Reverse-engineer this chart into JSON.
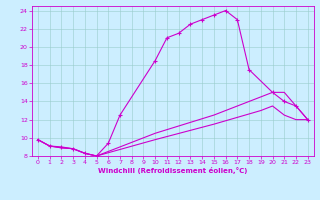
{
  "xlabel": "Windchill (Refroidissement éolien,°C)",
  "background_color": "#cceeff",
  "line_color": "#cc00cc",
  "xlim": [
    -0.5,
    23.5
  ],
  "ylim": [
    8,
    24.5
  ],
  "yticks": [
    8,
    10,
    12,
    14,
    16,
    18,
    20,
    22,
    24
  ],
  "xticks": [
    0,
    1,
    2,
    3,
    4,
    5,
    6,
    7,
    8,
    9,
    10,
    11,
    12,
    13,
    14,
    15,
    16,
    17,
    18,
    19,
    20,
    21,
    22,
    23
  ],
  "series": [
    {
      "x": [
        0,
        1,
        2,
        3,
        4,
        5,
        6,
        7,
        10,
        11,
        12,
        13,
        14,
        15,
        16,
        17,
        18,
        20,
        21,
        22,
        23
      ],
      "y": [
        9.8,
        9.1,
        9.0,
        8.8,
        8.3,
        8.0,
        9.4,
        12.5,
        18.5,
        21.0,
        21.5,
        22.5,
        23.0,
        23.5,
        24.0,
        23.0,
        17.5,
        15.0,
        14.0,
        13.5,
        12.0
      ],
      "marker": true
    },
    {
      "x": [
        0,
        1,
        2,
        3,
        4,
        5,
        10,
        15,
        19,
        20,
        21,
        22,
        23
      ],
      "y": [
        9.8,
        9.1,
        8.9,
        8.8,
        8.3,
        8.0,
        9.8,
        11.5,
        13.0,
        13.5,
        12.5,
        12.0,
        12.0
      ],
      "marker": false
    },
    {
      "x": [
        0,
        1,
        2,
        3,
        4,
        5,
        10,
        15,
        19,
        20,
        21,
        22,
        23
      ],
      "y": [
        9.8,
        9.1,
        8.9,
        8.8,
        8.3,
        8.0,
        10.5,
        12.5,
        14.5,
        15.0,
        15.0,
        13.5,
        12.0
      ],
      "marker": false
    }
  ]
}
